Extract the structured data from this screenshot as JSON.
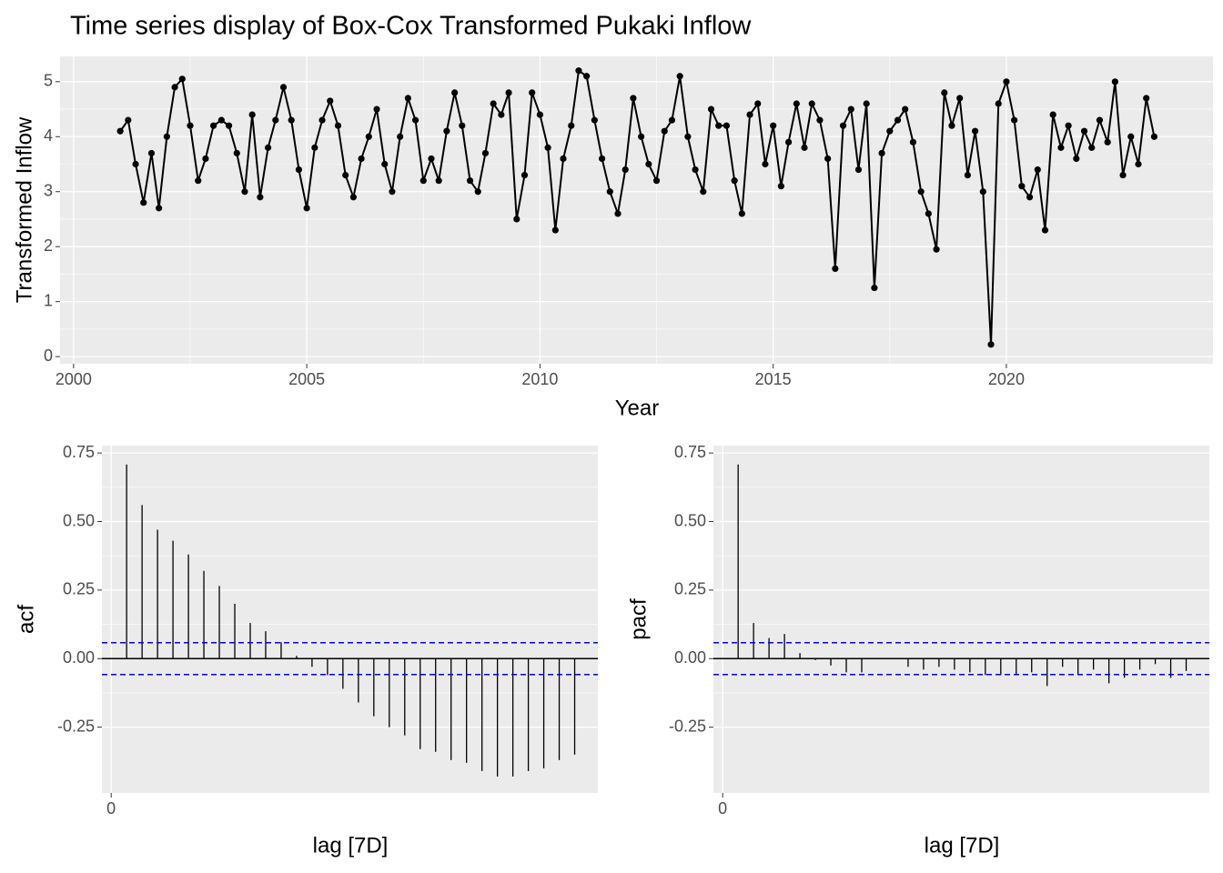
{
  "chart_data": [
    {
      "type": "line",
      "title": "Time series display of Box-Cox Transformed Pukaki Inflow",
      "x_label": "Year",
      "y_label": "Transformed Inflow",
      "color": "#000000",
      "x": [
        2001,
        2001.17,
        2001.33,
        2001.5,
        2001.67,
        2001.83,
        2002,
        2002.17,
        2002.33,
        2002.5,
        2002.67,
        2002.83,
        2003,
        2003.17,
        2003.33,
        2003.5,
        2003.67,
        2003.83,
        2004,
        2004.17,
        2004.33,
        2004.5,
        2004.67,
        2004.83,
        2005,
        2005.17,
        2005.33,
        2005.5,
        2005.67,
        2005.83,
        2006,
        2006.17,
        2006.33,
        2006.5,
        2006.67,
        2006.83,
        2007,
        2007.17,
        2007.33,
        2007.5,
        2007.67,
        2007.83,
        2008,
        2008.17,
        2008.33,
        2008.5,
        2008.67,
        2008.83,
        2009,
        2009.17,
        2009.33,
        2009.5,
        2009.67,
        2009.83,
        2010,
        2010.17,
        2010.33,
        2010.5,
        2010.67,
        2010.83,
        2011,
        2011.17,
        2011.33,
        2011.5,
        2011.67,
        2011.83,
        2012,
        2012.17,
        2012.33,
        2012.5,
        2012.67,
        2012.83,
        2013,
        2013.17,
        2013.33,
        2013.5,
        2013.67,
        2013.83,
        2014,
        2014.17,
        2014.33,
        2014.5,
        2014.67,
        2014.83,
        2015,
        2015.17,
        2015.33,
        2015.5,
        2015.67,
        2015.83,
        2016,
        2016.17,
        2016.33,
        2016.5,
        2016.67,
        2016.83,
        2017,
        2017.17,
        2017.33,
        2017.5,
        2017.67,
        2017.83,
        2018,
        2018.17,
        2018.33,
        2018.5,
        2018.67,
        2018.83,
        2019,
        2019.17,
        2019.33,
        2019.5,
        2019.67,
        2019.83,
        2020,
        2020.17,
        2020.33,
        2020.5,
        2020.67,
        2020.83,
        2021,
        2021.17,
        2021.33,
        2021.5,
        2021.67,
        2021.83,
        2022,
        2022.17,
        2022.33,
        2022.5,
        2022.67,
        2022.83,
        2023,
        2023.17
      ],
      "values": [
        4.1,
        4.3,
        3.5,
        2.8,
        3.7,
        2.7,
        4.0,
        4.9,
        5.05,
        4.2,
        3.2,
        3.6,
        4.2,
        4.3,
        4.2,
        3.7,
        3.0,
        4.4,
        2.9,
        3.8,
        4.3,
        4.9,
        4.3,
        3.4,
        2.7,
        3.8,
        4.3,
        4.65,
        4.2,
        3.3,
        2.9,
        3.6,
        4.0,
        4.5,
        3.5,
        3.0,
        4.0,
        4.7,
        4.3,
        3.2,
        3.6,
        3.2,
        4.1,
        4.8,
        4.2,
        3.2,
        3.0,
        3.7,
        4.6,
        4.4,
        4.8,
        2.5,
        3.3,
        4.8,
        4.4,
        3.8,
        2.3,
        3.6,
        4.2,
        5.2,
        5.1,
        4.3,
        3.6,
        3.0,
        2.6,
        3.4,
        4.7,
        4.0,
        3.5,
        3.2,
        4.1,
        4.3,
        5.1,
        4.0,
        3.4,
        3.0,
        4.5,
        4.2,
        4.2,
        3.2,
        2.6,
        4.4,
        4.6,
        3.5,
        4.2,
        3.1,
        3.9,
        4.6,
        3.8,
        4.6,
        4.3,
        3.6,
        1.6,
        4.2,
        4.5,
        3.4,
        4.6,
        1.25,
        3.7,
        4.1,
        4.3,
        4.5,
        3.9,
        3.0,
        2.6,
        1.95,
        4.8,
        4.2,
        4.7,
        3.3,
        4.1,
        3.0,
        0.22,
        4.6,
        5.0,
        4.3,
        3.1,
        2.9,
        3.4,
        2.3,
        4.4,
        3.8,
        4.2,
        3.6,
        4.1,
        3.8,
        4.3,
        3.9,
        5.0,
        3.3,
        4.0,
        3.5,
        4.7,
        4.0
      ],
      "xlim": [
        1999.71,
        2024.43
      ],
      "ylim": [
        -0.13,
        5.46
      ],
      "xticks": [
        2000,
        2005,
        2010,
        2015,
        2020
      ],
      "yticks": [
        0,
        1,
        2,
        3,
        4,
        5
      ],
      "grid": true
    },
    {
      "type": "acf",
      "x_label": "lag [7D]",
      "y_label": "acf",
      "color": "#000000",
      "ci_color": "#0000ff",
      "x": [
        1,
        2,
        3,
        4,
        5,
        6,
        7,
        8,
        9,
        10,
        11,
        12,
        13,
        14,
        15,
        16,
        17,
        18,
        19,
        20,
        21,
        22,
        23,
        24,
        25,
        26,
        27,
        28,
        29,
        30
      ],
      "values": [
        0.708,
        0.56,
        0.47,
        0.43,
        0.38,
        0.32,
        0.265,
        0.2,
        0.13,
        0.1,
        0.06,
        0.01,
        -0.03,
        -0.06,
        -0.11,
        -0.16,
        -0.21,
        -0.25,
        -0.28,
        -0.33,
        -0.34,
        -0.37,
        -0.38,
        -0.41,
        -0.43,
        -0.43,
        -0.41,
        -0.4,
        -0.37,
        -0.35
      ],
      "ci_lines": [
        0.058,
        -0.058
      ],
      "xlim": [
        -0.6,
        31.5
      ],
      "ylim": [
        -0.49,
        0.777
      ],
      "xticks": [
        0
      ],
      "yticks": [
        {
          "value": 0.75,
          "label": "0.75"
        },
        {
          "value": 0.5,
          "label": "0.50"
        },
        {
          "value": 0.25,
          "label": "0.25"
        },
        {
          "value": 0,
          "label": "0.00"
        },
        {
          "value": -0.25,
          "label": "-0.25"
        }
      ],
      "grid": true
    },
    {
      "type": "acf",
      "x_label": "lag [7D]",
      "y_label": "pacf",
      "color": "#000000",
      "ci_color": "#0000ff",
      "x": [
        1,
        2,
        3,
        4,
        5,
        6,
        7,
        8,
        9,
        10,
        11,
        12,
        13,
        14,
        15,
        16,
        17,
        18,
        19,
        20,
        21,
        22,
        23,
        24,
        25,
        26,
        27,
        28,
        29,
        30
      ],
      "values": [
        0.708,
        0.13,
        0.075,
        0.09,
        0.02,
        -0.005,
        -0.025,
        -0.05,
        -0.05,
        0,
        0,
        -0.03,
        -0.04,
        -0.03,
        -0.04,
        -0.05,
        -0.06,
        -0.06,
        -0.06,
        -0.05,
        -0.1,
        -0.03,
        -0.06,
        -0.04,
        -0.09,
        -0.07,
        -0.04,
        -0.02,
        -0.07,
        -0.045
      ],
      "ci_lines": [
        0.058,
        -0.058
      ],
      "xlim": [
        -0.6,
        31.5
      ],
      "ylim": [
        -0.49,
        0.777
      ],
      "xticks": [
        0
      ],
      "yticks": [
        {
          "value": 0.75,
          "label": "0.75"
        },
        {
          "value": 0.5,
          "label": "0.50"
        },
        {
          "value": 0.25,
          "label": "0.25"
        },
        {
          "value": 0,
          "label": "0.00"
        },
        {
          "value": -0.25,
          "label": "-0.25"
        }
      ],
      "grid": true
    }
  ]
}
